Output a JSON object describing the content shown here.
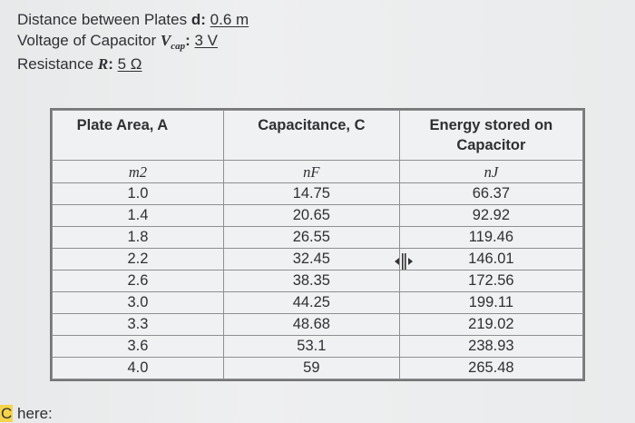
{
  "params": {
    "distance": {
      "label": "Distance between Plates",
      "symbol": "d",
      "value": "0.6 m"
    },
    "voltage": {
      "label": "Voltage of Capacitor",
      "symbol": "V",
      "subscript": "cap",
      "value": "3 V"
    },
    "resistance": {
      "label": "Resistance",
      "symbol": "R",
      "value": "5 Ω"
    }
  },
  "table": {
    "headers": [
      "Plate Area, A",
      "Capacitance, C",
      "Energy stored on Capacitor"
    ],
    "units": [
      "m2",
      "nF",
      "nJ"
    ],
    "rows": [
      [
        "1.0",
        "14.75",
        "66.37"
      ],
      [
        "1.4",
        "20.65",
        "92.92"
      ],
      [
        "1.8",
        "26.55",
        "119.46"
      ],
      [
        "2.2",
        "32.45",
        "146.01"
      ],
      [
        "2.6",
        "38.35",
        "172.56"
      ],
      [
        "3.0",
        "44.25",
        "199.11"
      ],
      [
        "3.3",
        "48.68",
        "219.02"
      ],
      [
        "3.6",
        "53.1",
        "238.93"
      ],
      [
        "4.0",
        "59",
        "265.48"
      ]
    ]
  },
  "footer": {
    "highlight": "C",
    "text": " here:"
  },
  "icons": {
    "cursor": "column-resize-cursor-icon"
  }
}
